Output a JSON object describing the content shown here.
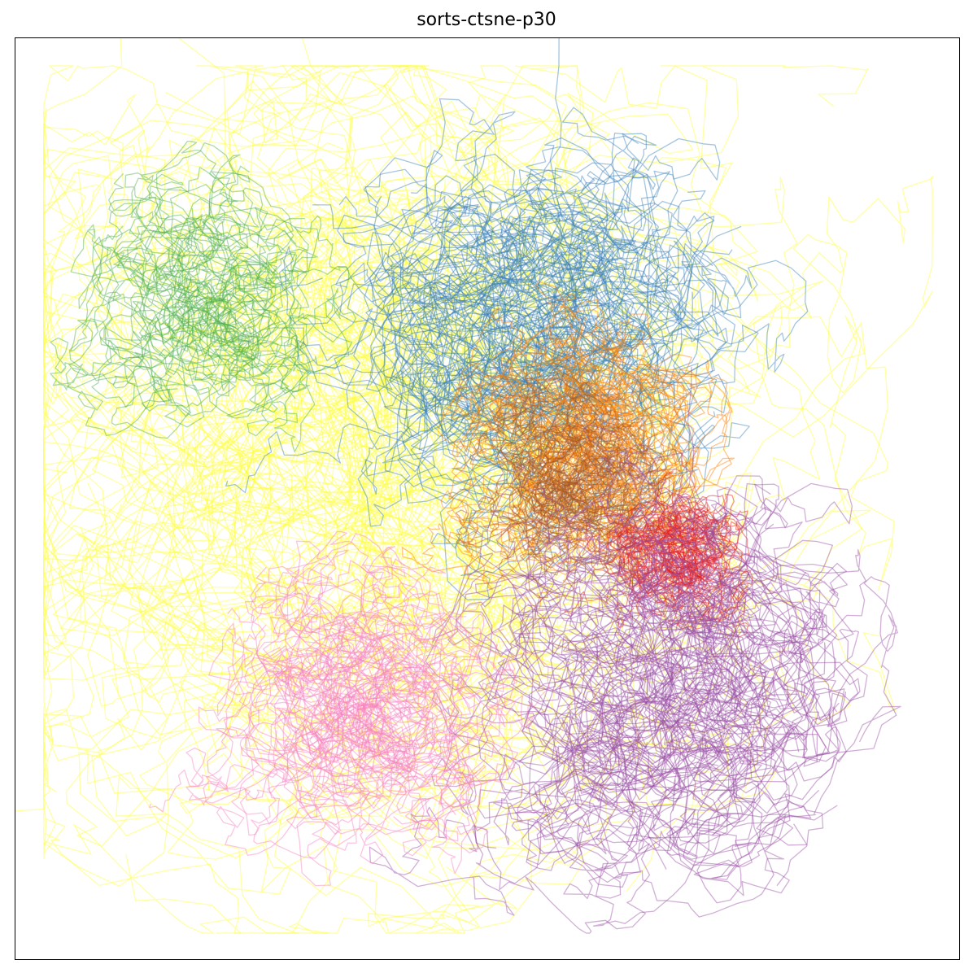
{
  "title": "sorts-ctsne-p30",
  "chart_data": {
    "type": "line",
    "title": "sorts-ctsne-p30",
    "xlabel": "",
    "ylabel": "",
    "xlim": [
      -50,
      50
    ],
    "ylim": [
      -50,
      50
    ],
    "grid": false,
    "axis_ticks": false,
    "legend": "none",
    "line_opacity": 0.45,
    "series": [
      {
        "color": "#ffff33",
        "cx": -14,
        "cy": 4,
        "spread": 34,
        "traces": 70
      },
      {
        "color": "#4daf4a",
        "cx": -30,
        "cy": 22,
        "spread": 10,
        "traces": 28
      },
      {
        "color": "#377eb8",
        "cx": 4,
        "cy": 18,
        "spread": 16,
        "traces": 55
      },
      {
        "color": "#ff7f00",
        "cx": 10,
        "cy": 6,
        "spread": 10,
        "traces": 40
      },
      {
        "color": "#a65628",
        "cx": 8,
        "cy": 2,
        "spread": 7,
        "traces": 28
      },
      {
        "color": "#e41a1c",
        "cx": 20,
        "cy": -6,
        "spread": 6,
        "traces": 28
      },
      {
        "color": "#984ea3",
        "cx": 18,
        "cy": -20,
        "spread": 16,
        "traces": 55
      },
      {
        "color": "#f781bf",
        "cx": -14,
        "cy": -22,
        "spread": 11,
        "traces": 40
      }
    ]
  }
}
